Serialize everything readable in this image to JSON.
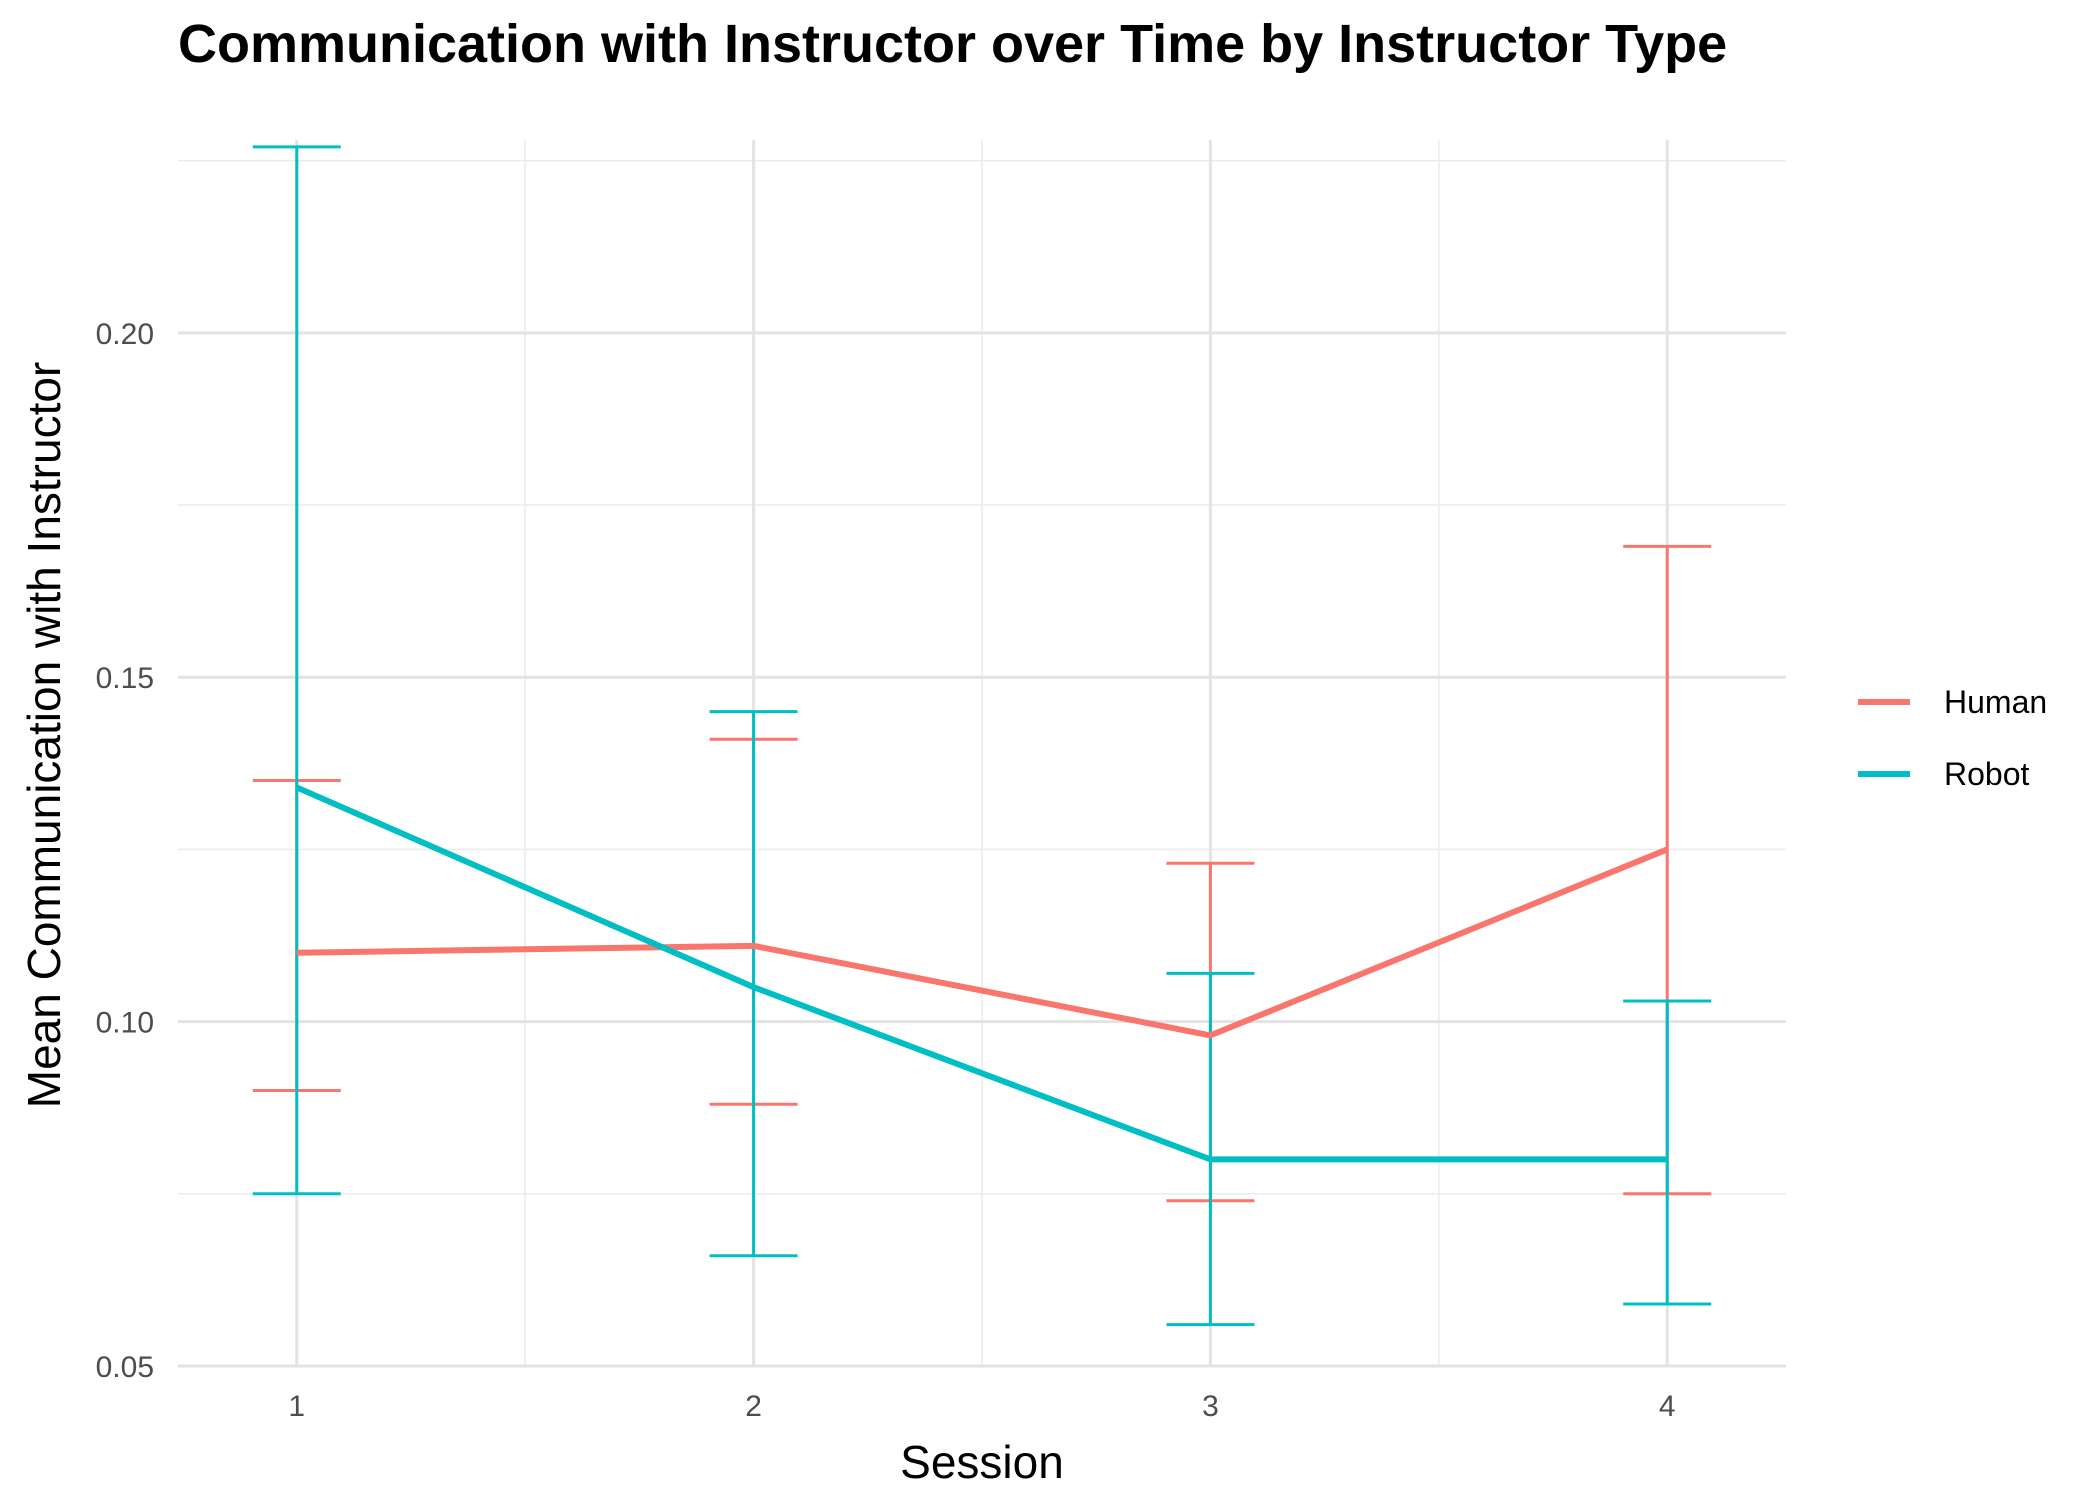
{
  "chart_data": {
    "type": "line",
    "title": "Communication with Instructor over Time by Instructor Type",
    "xlabel": "Session",
    "ylabel": "Mean Communication with Instructor",
    "x": [
      1,
      2,
      3,
      4
    ],
    "x_tick_labels": [
      "1",
      "2",
      "3",
      "4"
    ],
    "xlim": [
      0.74,
      4.26
    ],
    "ylim": [
      0.05,
      0.228
    ],
    "y_ticks": [
      0.05,
      0.1,
      0.15,
      0.2
    ],
    "y_tick_labels": [
      "0.05",
      "0.10",
      "0.15",
      "0.20"
    ],
    "grid": true,
    "legend_position": "right",
    "series": [
      {
        "name": "Human",
        "color": "#F8766D",
        "values": [
          0.11,
          0.111,
          0.098,
          0.125
        ],
        "error_low": [
          0.09,
          0.088,
          0.074,
          0.075
        ],
        "error_high": [
          0.135,
          0.141,
          0.123,
          0.169
        ]
      },
      {
        "name": "Robot",
        "color": "#00BFC4",
        "values": [
          0.134,
          0.105,
          0.08,
          0.08
        ],
        "error_low": [
          0.075,
          0.066,
          0.056,
          0.059
        ],
        "error_high": [
          0.227,
          0.145,
          0.107,
          0.103
        ]
      }
    ]
  }
}
